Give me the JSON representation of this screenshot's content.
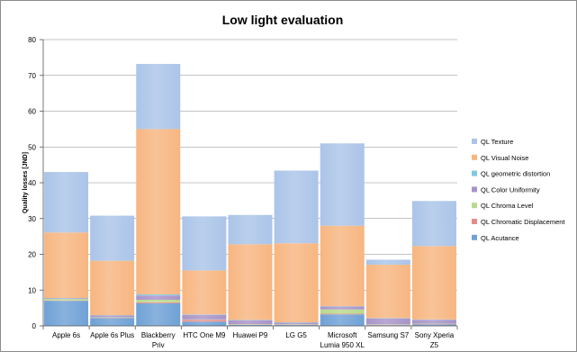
{
  "chart_data": {
    "type": "bar",
    "stacked": true,
    "title": "Low light evaluation",
    "xlabel": "",
    "ylabel": "Quality losses [JND]",
    "ylim": [
      0,
      80
    ],
    "yticks": [
      0,
      10,
      20,
      30,
      40,
      50,
      60,
      70,
      80
    ],
    "grid": true,
    "legend_position": "right",
    "categories": [
      [
        "Apple 6s"
      ],
      [
        "Apple 6s Plus"
      ],
      [
        "Blackberry",
        "Priv"
      ],
      [
        "HTC One M9"
      ],
      [
        "Huawei P9"
      ],
      [
        "LG G5"
      ],
      [
        "Microsoft",
        "Lumia 950 XL"
      ],
      [
        "Samsung S7"
      ],
      [
        "Sony Xperia",
        "Z5"
      ]
    ],
    "series": [
      {
        "name": "QL Acutance",
        "color": "#6fa1d6",
        "values": [
          7.0,
          2.2,
          6.3,
          1.2,
          0.3,
          0.3,
          3.2,
          0.2,
          0.4
        ]
      },
      {
        "name": "QL Chromatic Displacement",
        "color": "#e98a8a",
        "values": [
          0.1,
          0.1,
          0.3,
          0.5,
          0.1,
          0.1,
          0.2,
          0.1,
          0.1
        ]
      },
      {
        "name": "QL Chroma Level",
        "color": "#b9d98c",
        "values": [
          0.4,
          0.1,
          0.7,
          0.1,
          0.1,
          0.1,
          1.2,
          0.1,
          0.1
        ]
      },
      {
        "name": "QL Color Uniformity",
        "color": "#a894c8",
        "values": [
          0.2,
          0.5,
          1.2,
          1.3,
          1.1,
          0.4,
          0.8,
          1.7,
          1.1
        ]
      },
      {
        "name": "QL geometric distortion",
        "color": "#7fc8df",
        "values": [
          0.1,
          0.1,
          0.3,
          0.1,
          0.1,
          0.1,
          0.1,
          0.1,
          0.1
        ]
      },
      {
        "name": "QL Visual Noise",
        "color": "#f7b681",
        "values": [
          18.3,
          15.2,
          46.2,
          12.3,
          21.1,
          22.1,
          22.5,
          14.9,
          20.5
        ]
      },
      {
        "name": "QL Texture",
        "color": "#abc4e8",
        "values": [
          16.9,
          12.6,
          18.2,
          15.1,
          8.2,
          20.3,
          23.0,
          1.4,
          12.6
        ]
      }
    ]
  }
}
